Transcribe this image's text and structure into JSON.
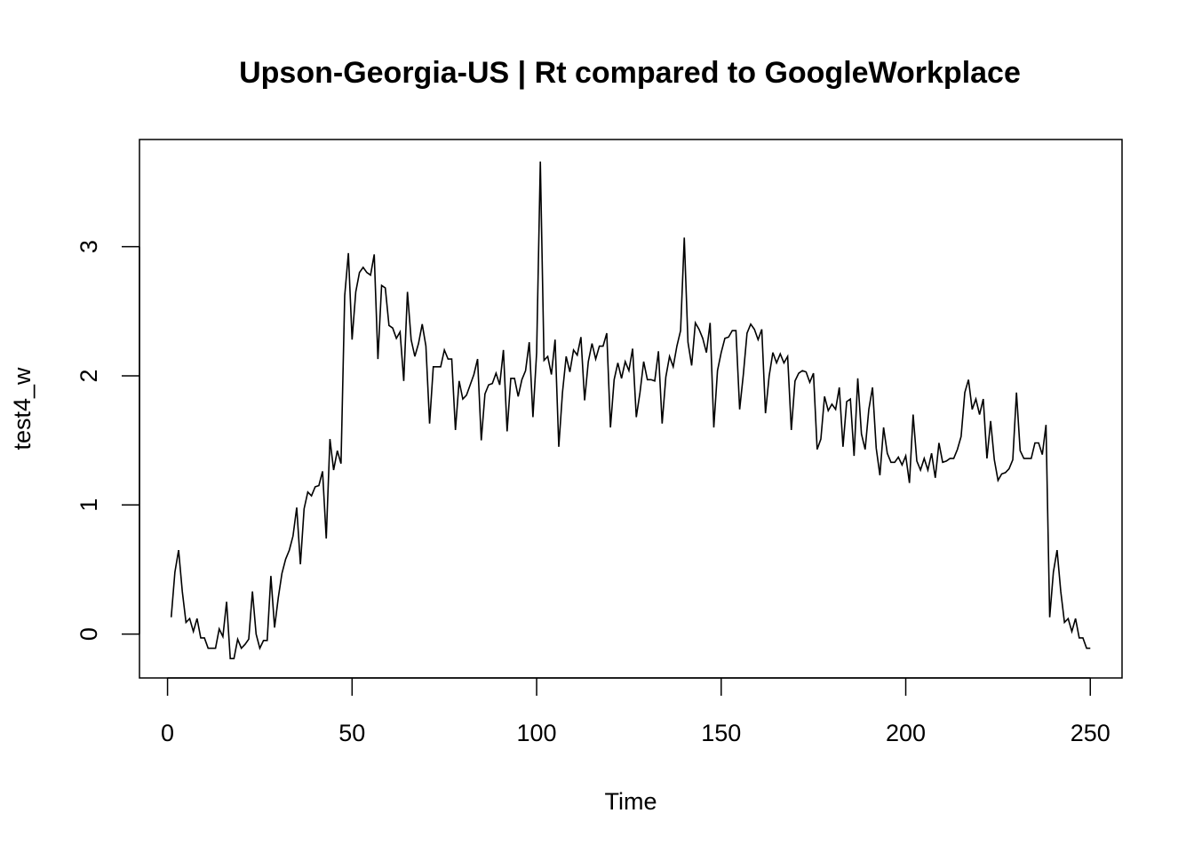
{
  "chart_data": {
    "type": "line",
    "title": "Upson-Georgia-US | Rt compared to GoogleWorkplace",
    "xlabel": "Time",
    "ylabel": "test4_w",
    "xlim": [
      -7.6,
      258.6
    ],
    "ylim": [
      -0.34,
      3.83
    ],
    "xticks": [
      0,
      50,
      100,
      150,
      200,
      250
    ],
    "yticks": [
      0,
      1,
      2,
      3
    ],
    "x_start": 1,
    "series": [
      {
        "values": [
          0.13,
          0.48,
          0.65,
          0.33,
          0.09,
          0.12,
          0.02,
          0.12,
          -0.03,
          -0.03,
          -0.11,
          -0.11,
          -0.11,
          0.04,
          -0.02,
          0.25,
          -0.19,
          -0.19,
          -0.04,
          -0.11,
          -0.08,
          -0.04,
          0.33,
          0.0,
          -0.11,
          -0.05,
          -0.05,
          0.45,
          0.05,
          0.28,
          0.47,
          0.58,
          0.65,
          0.76,
          0.98,
          0.54,
          0.97,
          1.1,
          1.07,
          1.14,
          1.15,
          1.26,
          0.74,
          1.51,
          1.27,
          1.42,
          1.32,
          2.62,
          2.95,
          2.28,
          2.65,
          2.8,
          2.84,
          2.8,
          2.78,
          2.94,
          2.13,
          2.7,
          2.68,
          2.39,
          2.37,
          2.29,
          2.34,
          1.96,
          2.65,
          2.28,
          2.15,
          2.25,
          2.4,
          2.23,
          1.63,
          2.07,
          2.07,
          2.07,
          2.2,
          2.13,
          2.13,
          1.58,
          1.96,
          1.82,
          1.85,
          1.93,
          2.01,
          2.13,
          1.5,
          1.86,
          1.93,
          1.94,
          2.02,
          1.93,
          2.2,
          1.57,
          1.98,
          1.98,
          1.84,
          1.97,
          2.04,
          2.26,
          1.68,
          2.18,
          3.66,
          2.12,
          2.15,
          2.01,
          2.28,
          1.45,
          1.87,
          2.15,
          2.03,
          2.2,
          2.16,
          2.3,
          1.81,
          2.11,
          2.25,
          2.13,
          2.23,
          2.23,
          2.33,
          1.6,
          1.97,
          2.1,
          1.98,
          2.11,
          2.04,
          2.21,
          1.68,
          1.87,
          2.11,
          1.97,
          1.97,
          1.96,
          2.19,
          1.63,
          1.99,
          2.15,
          2.07,
          2.23,
          2.35,
          3.07,
          2.26,
          2.08,
          2.41,
          2.36,
          2.29,
          2.18,
          2.41,
          1.6,
          2.04,
          2.18,
          2.29,
          2.3,
          2.35,
          2.35,
          1.74,
          2.01,
          2.33,
          2.4,
          2.36,
          2.28,
          2.36,
          1.71,
          2.0,
          2.18,
          2.1,
          2.17,
          2.1,
          2.15,
          1.58,
          1.96,
          2.02,
          2.04,
          2.03,
          1.95,
          2.02,
          1.43,
          1.51,
          1.84,
          1.73,
          1.78,
          1.74,
          1.91,
          1.45,
          1.8,
          1.82,
          1.38,
          1.98,
          1.55,
          1.43,
          1.74,
          1.91,
          1.44,
          1.23,
          1.6,
          1.4,
          1.33,
          1.33,
          1.37,
          1.31,
          1.38,
          1.17,
          1.7,
          1.34,
          1.27,
          1.36,
          1.27,
          1.4,
          1.21,
          1.48,
          1.33,
          1.34,
          1.36,
          1.36,
          1.43,
          1.53,
          1.87,
          1.97,
          1.74,
          1.82,
          1.7,
          1.82,
          1.36,
          1.65,
          1.35,
          1.19,
          1.24,
          1.25,
          1.28,
          1.35,
          1.87,
          1.42,
          1.36,
          1.36,
          1.36,
          1.48,
          1.48,
          1.39,
          1.62,
          0.13,
          0.48,
          0.65,
          0.33,
          0.09,
          0.12,
          0.02,
          0.12,
          -0.03,
          -0.03,
          -0.11,
          -0.11
        ]
      }
    ]
  }
}
